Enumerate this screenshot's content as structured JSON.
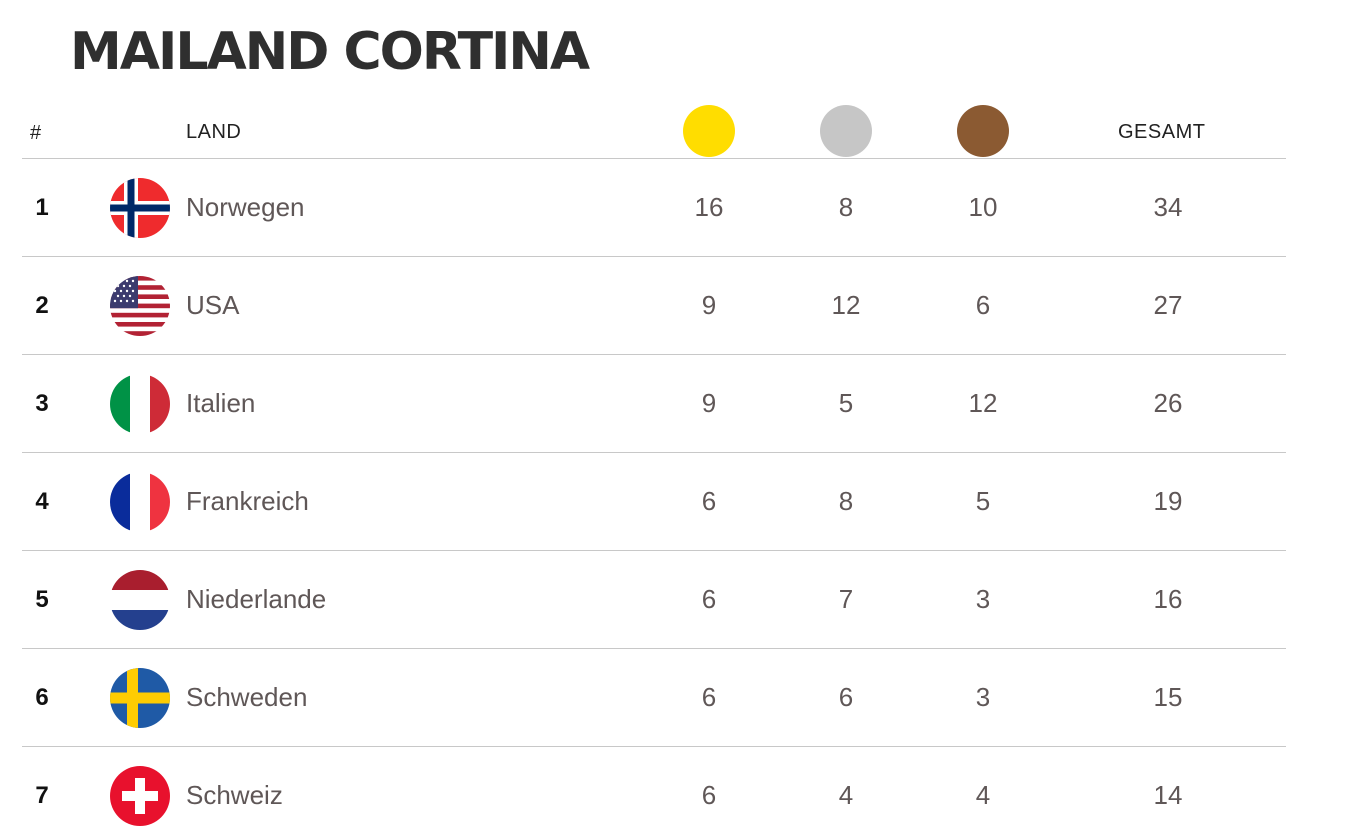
{
  "title": "MAILAND CORTINA",
  "header": {
    "rank_label": "#",
    "country_label": "LAND",
    "total_label": "GESAMT",
    "medal_colors": {
      "gold": "#FFDD00",
      "silver": "#C6C6C6",
      "bronze": "#8B5A32"
    }
  },
  "rows": [
    {
      "rank": "1",
      "country": "Norwegen",
      "flag": "norway-flag",
      "gold": "16",
      "silver": "8",
      "bronze": "10",
      "total": "34"
    },
    {
      "rank": "2",
      "country": "USA",
      "flag": "usa-flag",
      "gold": "9",
      "silver": "12",
      "bronze": "6",
      "total": "27"
    },
    {
      "rank": "3",
      "country": "Italien",
      "flag": "italy-flag",
      "gold": "9",
      "silver": "5",
      "bronze": "12",
      "total": "26"
    },
    {
      "rank": "4",
      "country": "Frankreich",
      "flag": "france-flag",
      "gold": "6",
      "silver": "8",
      "bronze": "5",
      "total": "19"
    },
    {
      "rank": "5",
      "country": "Niederlande",
      "flag": "netherlands-flag",
      "gold": "6",
      "silver": "7",
      "bronze": "3",
      "total": "16"
    },
    {
      "rank": "6",
      "country": "Schweden",
      "flag": "sweden-flag",
      "gold": "6",
      "silver": "6",
      "bronze": "3",
      "total": "15"
    },
    {
      "rank": "7",
      "country": "Schweiz",
      "flag": "switzerland-flag",
      "gold": "6",
      "silver": "4",
      "bronze": "4",
      "total": "14"
    }
  ]
}
